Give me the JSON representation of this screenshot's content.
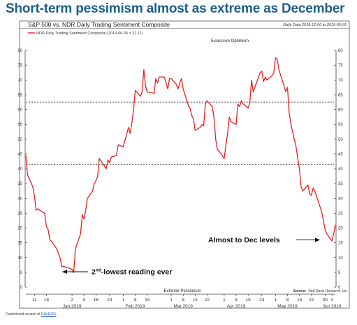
{
  "headline": "Short-term pessimism almost as extreme as December",
  "footer": {
    "prefix": "Customized version of ",
    "link": "DAVE261"
  },
  "chart_data": {
    "type": "line",
    "title": "S&P 500 vs. NDR Daily Trading Sentiment Composite",
    "date_range_note": "Daily Data 2018-12-06 to 2019-06-05",
    "legend": "NDR Daily Trading Sentiment Composite (2019-06-05 = 21.11)",
    "legend_placement": "top-left",
    "ylim": [
      0,
      80
    ],
    "yticks": [
      0,
      5,
      10,
      15,
      20,
      25,
      30,
      35,
      40,
      45,
      50,
      55,
      60,
      65,
      70,
      75,
      80
    ],
    "xlim": [
      "2018-12-06",
      "2019-06-05"
    ],
    "day_ticks": [
      {
        "date": "2018-12-11",
        "label": "11"
      },
      {
        "date": "2018-12-18",
        "label": "18"
      },
      {
        "date": "2019-01-02",
        "label": "2"
      },
      {
        "date": "2019-01-09",
        "label": "9"
      },
      {
        "date": "2019-01-16",
        "label": "16"
      },
      {
        "date": "2019-01-24",
        "label": "24"
      },
      {
        "date": "2019-02-01",
        "label": "1"
      },
      {
        "date": "2019-02-08",
        "label": "8"
      },
      {
        "date": "2019-02-15",
        "label": "15"
      },
      {
        "date": "2019-03-01",
        "label": "1"
      },
      {
        "date": "2019-03-08",
        "label": "8"
      },
      {
        "date": "2019-03-15",
        "label": "15"
      },
      {
        "date": "2019-03-22",
        "label": "22"
      },
      {
        "date": "2019-04-01",
        "label": "1"
      },
      {
        "date": "2019-04-08",
        "label": "8"
      },
      {
        "date": "2019-04-15",
        "label": "15"
      },
      {
        "date": "2019-04-23",
        "label": "23"
      },
      {
        "date": "2019-05-01",
        "label": "1"
      },
      {
        "date": "2019-05-08",
        "label": "8"
      },
      {
        "date": "2019-05-15",
        "label": "15"
      },
      {
        "date": "2019-05-22",
        "label": "22"
      },
      {
        "date": "2019-05-30",
        "label": "30"
      },
      {
        "date": "2019-06-03",
        "label": "3"
      }
    ],
    "month_labels": [
      {
        "date": "2019-01-02",
        "label": "Jan 2019"
      },
      {
        "date": "2019-02-08",
        "label": "Feb 2019"
      },
      {
        "date": "2019-03-08",
        "label": "Mar 2019"
      },
      {
        "date": "2019-04-08",
        "label": "Apr 2019"
      },
      {
        "date": "2019-05-08",
        "label": "May 2019"
      },
      {
        "date": "2019-06-03",
        "label": "Jun 2019"
      }
    ],
    "zones": {
      "excessive_optimism": {
        "label": "Excessive Optimism",
        "level": 62.5
      },
      "extreme_pessimism": {
        "label": "Extreme Pessimism",
        "level": 41.5
      }
    },
    "annotations": [
      {
        "text": "2nd-lowest reading ever",
        "date": "2019-01-03",
        "value": 4.9
      },
      {
        "text": "Almost to Dec levels",
        "date": "2019-06-03",
        "value": 15.6
      }
    ],
    "source": {
      "label": "Source:",
      "text": "Ned Davis Research, Inc."
    },
    "series": [
      {
        "name": "NDR Daily Trading Sentiment Composite",
        "color": "#e32222",
        "points": [
          [
            "2018-12-06",
            44.5
          ],
          [
            "2018-12-07",
            38.0
          ],
          [
            "2018-12-10",
            34.0
          ],
          [
            "2018-12-11",
            31.0
          ],
          [
            "2018-12-12",
            26.0
          ],
          [
            "2018-12-13",
            26.5
          ],
          [
            "2018-12-14",
            26.0
          ],
          [
            "2018-12-17",
            25.0
          ],
          [
            "2018-12-18",
            20.5
          ],
          [
            "2018-12-19",
            19.5
          ],
          [
            "2018-12-20",
            16.0
          ],
          [
            "2018-12-21",
            15.5
          ],
          [
            "2018-12-24",
            13.0
          ],
          [
            "2018-12-26",
            10.0
          ],
          [
            "2018-12-27",
            7.0
          ],
          [
            "2018-12-28",
            7.0
          ],
          [
            "2018-12-31",
            6.5
          ],
          [
            "2019-01-02",
            6.0
          ],
          [
            "2019-01-03",
            4.9
          ],
          [
            "2019-01-04",
            13.0
          ],
          [
            "2019-01-07",
            18.0
          ],
          [
            "2019-01-08",
            24.5
          ],
          [
            "2019-01-09",
            23.0
          ],
          [
            "2019-01-10",
            26.0
          ],
          [
            "2019-01-11",
            30.0
          ],
          [
            "2019-01-14",
            32.5
          ],
          [
            "2019-01-15",
            35.0
          ],
          [
            "2019-01-16",
            36.0
          ],
          [
            "2019-01-17",
            37.5
          ],
          [
            "2019-01-18",
            43.5
          ],
          [
            "2019-01-22",
            40.0
          ],
          [
            "2019-01-23",
            43.0
          ],
          [
            "2019-01-24",
            42.0
          ],
          [
            "2019-01-25",
            44.0
          ],
          [
            "2019-01-28",
            44.5
          ],
          [
            "2019-01-29",
            48.0
          ],
          [
            "2019-01-30",
            48.0
          ],
          [
            "2019-01-31",
            47.5
          ],
          [
            "2019-02-01",
            47.5
          ],
          [
            "2019-02-04",
            54.0
          ],
          [
            "2019-02-05",
            52.0
          ],
          [
            "2019-02-06",
            55.5
          ],
          [
            "2019-02-07",
            60.0
          ],
          [
            "2019-02-08",
            66.5
          ],
          [
            "2019-02-11",
            64.5
          ],
          [
            "2019-02-12",
            66.0
          ],
          [
            "2019-02-13",
            73.5
          ],
          [
            "2019-02-14",
            68.0
          ],
          [
            "2019-02-15",
            66.0
          ],
          [
            "2019-02-19",
            65.5
          ],
          [
            "2019-02-20",
            70.5
          ],
          [
            "2019-02-21",
            69.0
          ],
          [
            "2019-02-22",
            71.0
          ],
          [
            "2019-02-25",
            71.0
          ],
          [
            "2019-02-26",
            69.0
          ],
          [
            "2019-02-27",
            67.0
          ],
          [
            "2019-02-28",
            70.5
          ],
          [
            "2019-03-01",
            70.5
          ],
          [
            "2019-03-04",
            68.5
          ],
          [
            "2019-03-05",
            67.0
          ],
          [
            "2019-03-06",
            69.0
          ],
          [
            "2019-03-07",
            70.5
          ],
          [
            "2019-03-08",
            67.0
          ],
          [
            "2019-03-11",
            61.5
          ],
          [
            "2019-03-12",
            60.5
          ],
          [
            "2019-03-13",
            58.0
          ],
          [
            "2019-03-14",
            57.0
          ],
          [
            "2019-03-15",
            53.0
          ],
          [
            "2019-03-18",
            54.0
          ],
          [
            "2019-03-19",
            55.0
          ],
          [
            "2019-03-20",
            54.5
          ],
          [
            "2019-03-21",
            62.0
          ],
          [
            "2019-03-22",
            63.0
          ],
          [
            "2019-03-25",
            61.0
          ],
          [
            "2019-03-26",
            57.5
          ],
          [
            "2019-03-27",
            50.0
          ],
          [
            "2019-03-28",
            46.5
          ],
          [
            "2019-03-29",
            46.0
          ],
          [
            "2019-04-01",
            43.5
          ],
          [
            "2019-04-02",
            48.0
          ],
          [
            "2019-04-03",
            52.0
          ],
          [
            "2019-04-04",
            57.5
          ],
          [
            "2019-04-05",
            56.0
          ],
          [
            "2019-04-08",
            55.0
          ],
          [
            "2019-04-09",
            62.0
          ],
          [
            "2019-04-10",
            61.0
          ],
          [
            "2019-04-11",
            63.0
          ],
          [
            "2019-04-12",
            62.0
          ],
          [
            "2019-04-15",
            60.5
          ],
          [
            "2019-04-16",
            62.5
          ],
          [
            "2019-04-17",
            70.0
          ],
          [
            "2019-04-18",
            66.0
          ],
          [
            "2019-04-22",
            72.5
          ],
          [
            "2019-04-23",
            73.0
          ],
          [
            "2019-04-24",
            69.5
          ],
          [
            "2019-04-25",
            71.0
          ],
          [
            "2019-04-26",
            70.0
          ],
          [
            "2019-04-29",
            71.5
          ],
          [
            "2019-04-30",
            72.5
          ],
          [
            "2019-05-01",
            77.5
          ],
          [
            "2019-05-02",
            77.0
          ],
          [
            "2019-05-03",
            73.5
          ],
          [
            "2019-05-06",
            68.0
          ],
          [
            "2019-05-07",
            66.0
          ],
          [
            "2019-05-08",
            67.5
          ],
          [
            "2019-05-09",
            59.0
          ],
          [
            "2019-05-10",
            55.0
          ],
          [
            "2019-05-13",
            47.5
          ],
          [
            "2019-05-14",
            43.5
          ],
          [
            "2019-05-15",
            40.0
          ],
          [
            "2019-05-16",
            34.0
          ],
          [
            "2019-05-17",
            32.5
          ],
          [
            "2019-05-20",
            34.5
          ],
          [
            "2019-05-21",
            31.5
          ],
          [
            "2019-05-22",
            31.0
          ],
          [
            "2019-05-23",
            33.5
          ],
          [
            "2019-05-24",
            32.5
          ],
          [
            "2019-05-28",
            25.5
          ],
          [
            "2019-05-29",
            22.5
          ],
          [
            "2019-05-30",
            19.5
          ],
          [
            "2019-05-31",
            18.0
          ],
          [
            "2019-06-03",
            15.6
          ],
          [
            "2019-06-04",
            18.0
          ],
          [
            "2019-06-05",
            21.11
          ]
        ]
      }
    ]
  }
}
